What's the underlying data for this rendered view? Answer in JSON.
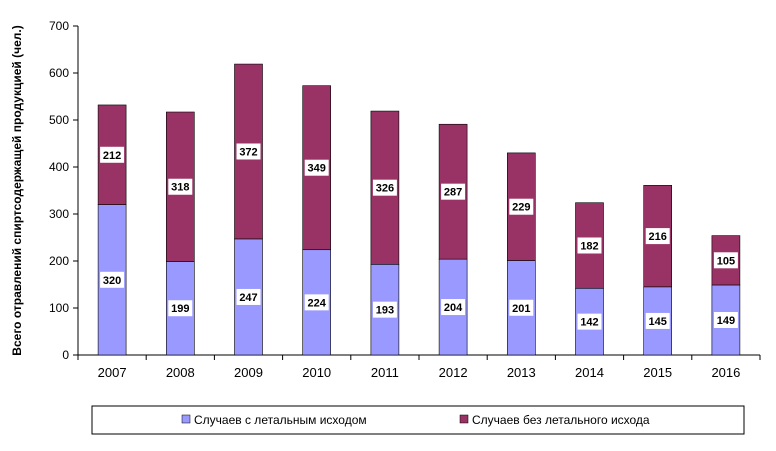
{
  "chart_data": {
    "type": "bar",
    "stacked": true,
    "categories": [
      "2007",
      "2008",
      "2009",
      "2010",
      "2011",
      "2012",
      "2013",
      "2014",
      "2015",
      "2016"
    ],
    "series": [
      {
        "name": "Случаев с летальным исходом",
        "color": "#9999FF",
        "values": [
          320,
          199,
          247,
          224,
          193,
          204,
          201,
          142,
          145,
          149
        ]
      },
      {
        "name": "Случаев без летального исхода",
        "color": "#993366",
        "values": [
          212,
          318,
          372,
          349,
          326,
          287,
          229,
          182,
          216,
          105
        ]
      }
    ],
    "ylabel": "Всего отравлений спиртсодержащей  продукцией  (чел.)",
    "ylim": [
      0,
      700
    ],
    "yticks": [
      0,
      100,
      200,
      300,
      400,
      500,
      600,
      700
    ],
    "grid": false,
    "legend_position": "bottom"
  }
}
